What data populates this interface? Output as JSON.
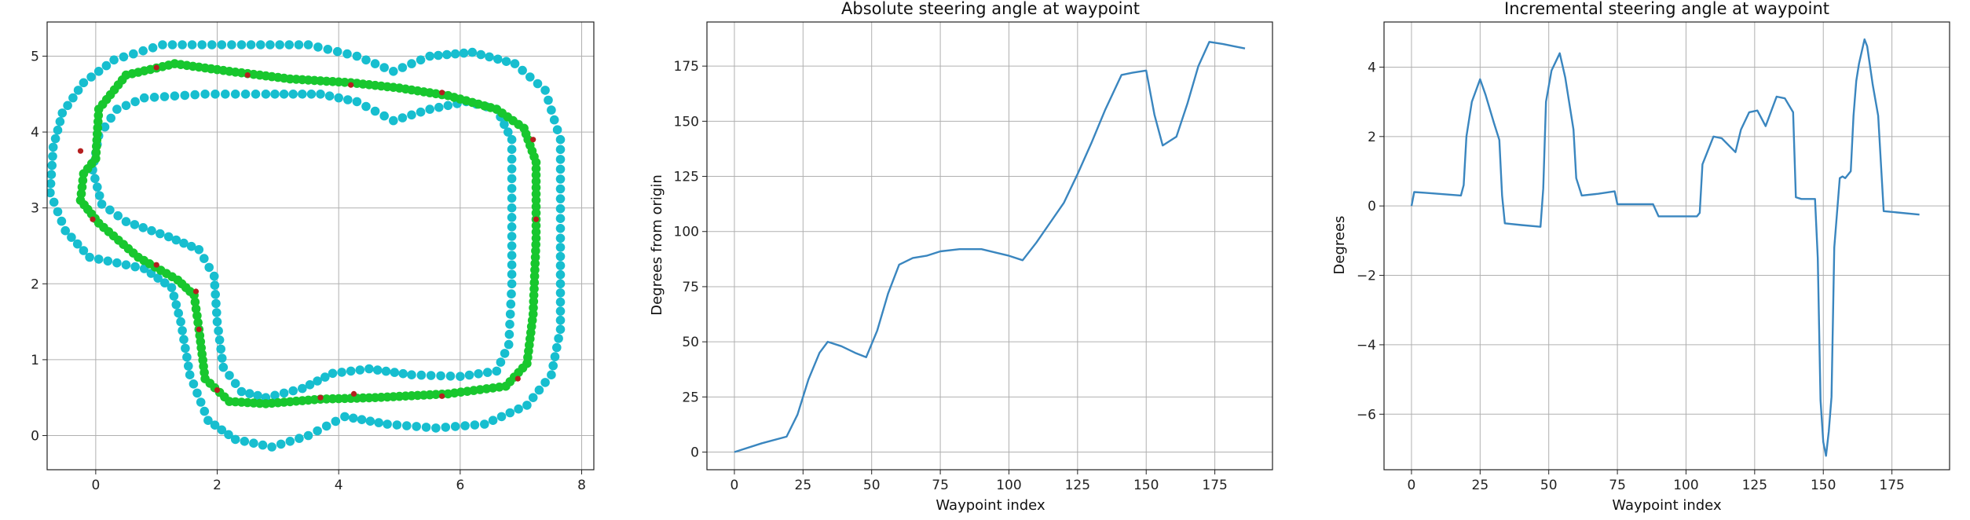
{
  "chart_data": [
    {
      "type": "scatter",
      "title": "",
      "xlabel": "",
      "ylabel": "",
      "xlim": [
        -0.8,
        8.2
      ],
      "ylim": [
        -0.45,
        5.45
      ],
      "xticks": [
        0,
        2,
        4,
        6,
        8
      ],
      "yticks": [
        0,
        1,
        2,
        3,
        4,
        5
      ],
      "grid": true,
      "colors": {
        "outer": "#17becf",
        "inner": "#17becf",
        "center": "#18c72e",
        "markers": "#b51f1f"
      },
      "series": [
        {
          "points": [
            [
              0.0,
              3.65
            ],
            [
              0.05,
              4.3
            ],
            [
              0.5,
              4.75
            ],
            [
              1.3,
              4.9
            ],
            [
              2.2,
              4.8
            ],
            [
              3.2,
              4.7
            ],
            [
              4.2,
              4.65
            ],
            [
              5.0,
              4.58
            ],
            [
              5.8,
              4.48
            ],
            [
              6.6,
              4.3
            ],
            [
              7.05,
              4.05
            ],
            [
              7.25,
              3.6
            ],
            [
              7.25,
              2.6
            ],
            [
              7.2,
              1.6
            ],
            [
              7.1,
              0.95
            ],
            [
              6.75,
              0.65
            ],
            [
              5.8,
              0.55
            ],
            [
              4.6,
              0.5
            ],
            [
              3.7,
              0.48
            ],
            [
              2.8,
              0.42
            ],
            [
              2.2,
              0.45
            ],
            [
              1.8,
              0.75
            ],
            [
              1.7,
              1.4
            ],
            [
              1.62,
              1.85
            ],
            [
              1.35,
              2.05
            ],
            [
              0.7,
              2.35
            ],
            [
              0.05,
              2.8
            ],
            [
              -0.25,
              3.1
            ],
            [
              -0.2,
              3.45
            ],
            [
              0.0,
              3.65
            ]
          ]
        },
        {
          "points": [
            [
              -0.7,
              3.8
            ],
            [
              -0.55,
              4.25
            ],
            [
              -0.2,
              4.65
            ],
            [
              0.3,
              4.95
            ],
            [
              1.1,
              5.15
            ],
            [
              2.4,
              5.15
            ],
            [
              3.5,
              5.15
            ],
            [
              4.3,
              5.0
            ],
            [
              4.9,
              4.8
            ],
            [
              5.5,
              5.0
            ],
            [
              6.2,
              5.05
            ],
            [
              6.9,
              4.9
            ],
            [
              7.4,
              4.55
            ],
            [
              7.65,
              3.9
            ],
            [
              7.65,
              2.6
            ],
            [
              7.65,
              1.4
            ],
            [
              7.5,
              0.8
            ],
            [
              7.1,
              0.4
            ],
            [
              6.4,
              0.15
            ],
            [
              5.6,
              0.1
            ],
            [
              4.8,
              0.15
            ],
            [
              4.1,
              0.25
            ],
            [
              3.5,
              0.0
            ],
            [
              2.9,
              -0.15
            ],
            [
              2.3,
              -0.05
            ],
            [
              1.85,
              0.2
            ],
            [
              1.55,
              0.8
            ],
            [
              1.4,
              1.5
            ],
            [
              1.25,
              1.95
            ],
            [
              0.8,
              2.2
            ],
            [
              -0.1,
              2.35
            ],
            [
              -0.5,
              2.7
            ],
            [
              -0.75,
              3.2
            ],
            [
              -0.7,
              3.8
            ]
          ]
        },
        {
          "points": [
            [
              -0.05,
              3.5
            ],
            [
              0.05,
              3.95
            ],
            [
              0.35,
              4.3
            ],
            [
              0.8,
              4.45
            ],
            [
              1.8,
              4.5
            ],
            [
              2.8,
              4.5
            ],
            [
              3.7,
              4.5
            ],
            [
              4.3,
              4.4
            ],
            [
              4.9,
              4.15
            ],
            [
              5.5,
              4.3
            ],
            [
              6.1,
              4.4
            ],
            [
              6.6,
              4.3
            ],
            [
              6.85,
              3.9
            ],
            [
              6.85,
              3.0
            ],
            [
              6.85,
              2.0
            ],
            [
              6.8,
              1.2
            ],
            [
              6.6,
              0.85
            ],
            [
              6.0,
              0.78
            ],
            [
              5.2,
              0.8
            ],
            [
              4.5,
              0.88
            ],
            [
              3.9,
              0.82
            ],
            [
              3.4,
              0.62
            ],
            [
              2.8,
              0.5
            ],
            [
              2.4,
              0.58
            ],
            [
              2.1,
              0.9
            ],
            [
              2.0,
              1.5
            ],
            [
              1.95,
              2.1
            ],
            [
              1.7,
              2.45
            ],
            [
              1.2,
              2.62
            ],
            [
              0.5,
              2.82
            ],
            [
              0.1,
              3.05
            ],
            [
              -0.05,
              3.5
            ]
          ]
        }
      ],
      "markers": [
        [
          -0.25,
          3.75
        ],
        [
          1.0,
          4.85
        ],
        [
          2.5,
          4.75
        ],
        [
          4.2,
          4.62
        ],
        [
          5.7,
          4.52
        ],
        [
          7.2,
          3.9
        ],
        [
          7.25,
          2.85
        ],
        [
          6.95,
          0.75
        ],
        [
          5.7,
          0.52
        ],
        [
          4.25,
          0.55
        ],
        [
          3.7,
          0.5
        ],
        [
          2.0,
          0.6
        ],
        [
          1.7,
          1.4
        ],
        [
          1.65,
          1.9
        ],
        [
          1.0,
          2.25
        ],
        [
          -0.05,
          2.85
        ]
      ]
    },
    {
      "type": "line",
      "title": "Absolute steering angle at waypoint",
      "xlabel": "Waypoint index",
      "ylabel": "Degrees from origin",
      "xlim": [
        -10,
        196
      ],
      "ylim": [
        -8,
        195
      ],
      "xticks": [
        0,
        25,
        50,
        75,
        100,
        125,
        150,
        175
      ],
      "yticks": [
        0,
        25,
        50,
        75,
        100,
        125,
        150,
        175
      ],
      "grid": true,
      "color": "#3a86bf",
      "series": [
        {
          "x": [
            0,
            10,
            19,
            23,
            27,
            31,
            34,
            39,
            44,
            48,
            52,
            56,
            60,
            65,
            70,
            75,
            82,
            90,
            100,
            105,
            110,
            115,
            120,
            125,
            130,
            135,
            141,
            145,
            150,
            153,
            156,
            161,
            165,
            169,
            173,
            178,
            182,
            186
          ],
          "y": [
            0,
            4,
            7,
            17,
            33,
            45,
            50,
            48,
            45,
            43,
            55,
            72,
            85,
            88,
            89,
            91,
            92,
            92,
            89,
            87,
            95,
            104,
            113,
            126,
            140,
            155,
            171,
            172,
            173,
            153,
            139,
            143,
            158,
            175,
            186,
            185,
            184,
            183
          ]
        }
      ]
    },
    {
      "type": "line",
      "title": "Incremental steering angle at waypoint",
      "xlabel": "Waypoint index",
      "ylabel": "Degrees",
      "xlim": [
        -10,
        196
      ],
      "ylim": [
        -7.6,
        5.3
      ],
      "xticks": [
        0,
        25,
        50,
        75,
        100,
        125,
        150,
        175
      ],
      "yticks": [
        -6,
        -4,
        -2,
        0,
        2,
        4
      ],
      "grid": true,
      "color": "#3a86bf",
      "series": [
        {
          "x": [
            0,
            1,
            5,
            18,
            19,
            20,
            22,
            25,
            27,
            30,
            32,
            33,
            34,
            40,
            47,
            48,
            49,
            51,
            54,
            56,
            59,
            60,
            62,
            68,
            74,
            75,
            88,
            90,
            104,
            105,
            106,
            110,
            113,
            118,
            120,
            123,
            126,
            129,
            133,
            136,
            139,
            140,
            142,
            147,
            148,
            149,
            150,
            151,
            152,
            153,
            154,
            156,
            157,
            158,
            160,
            161,
            162,
            163,
            165,
            166,
            168,
            170,
            172,
            185
          ],
          "y": [
            0.0,
            0.4,
            0.38,
            0.3,
            0.6,
            2.0,
            3.0,
            3.65,
            3.2,
            2.4,
            1.9,
            0.3,
            -0.5,
            -0.55,
            -0.6,
            0.5,
            3.0,
            3.9,
            4.4,
            3.7,
            2.2,
            0.8,
            0.3,
            0.35,
            0.42,
            0.05,
            0.05,
            -0.3,
            -0.3,
            -0.2,
            1.2,
            2.0,
            1.95,
            1.55,
            2.2,
            2.7,
            2.75,
            2.3,
            3.15,
            3.1,
            2.7,
            0.25,
            0.2,
            0.2,
            -1.5,
            -5.6,
            -6.8,
            -7.2,
            -6.5,
            -5.5,
            -1.2,
            0.8,
            0.85,
            0.8,
            1.0,
            2.6,
            3.6,
            4.1,
            4.8,
            4.6,
            3.5,
            2.6,
            -0.15,
            -0.25
          ]
        }
      ]
    }
  ]
}
